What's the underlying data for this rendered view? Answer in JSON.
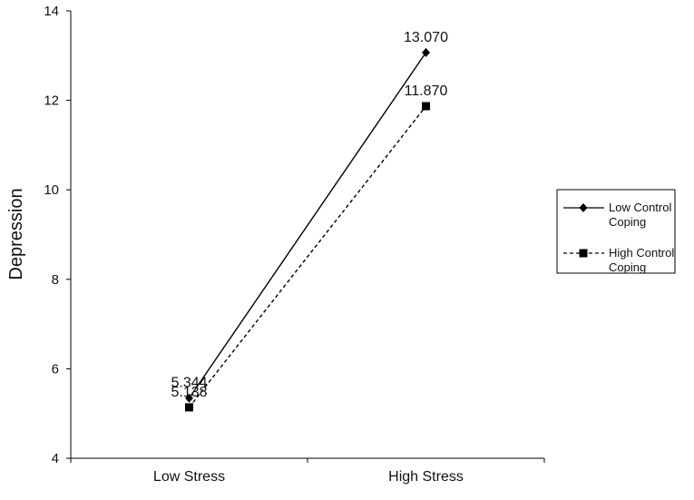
{
  "chart_data": {
    "type": "line",
    "categories": [
      "Low Stress",
      "High Stress"
    ],
    "ylabel": "Depression",
    "ylim": [
      4,
      14
    ],
    "yticks": [
      "4",
      "6",
      "8",
      "10",
      "12",
      "14"
    ],
    "grid": false,
    "legend_position": "right",
    "series": [
      {
        "name": "Low Control Coping",
        "legend_lines": [
          "Low Control",
          "Coping"
        ],
        "values": [
          5.344,
          13.07
        ],
        "labels": [
          "5.344",
          "13.070"
        ],
        "line_style": "solid",
        "marker": "diamond",
        "color": "#000000"
      },
      {
        "name": "High Control Coping",
        "legend_lines": [
          "High Control",
          "Coping"
        ],
        "values": [
          5.138,
          11.87
        ],
        "labels": [
          "5.138",
          "11.870"
        ],
        "line_style": "dashed",
        "marker": "square",
        "color": "#000000"
      }
    ]
  }
}
